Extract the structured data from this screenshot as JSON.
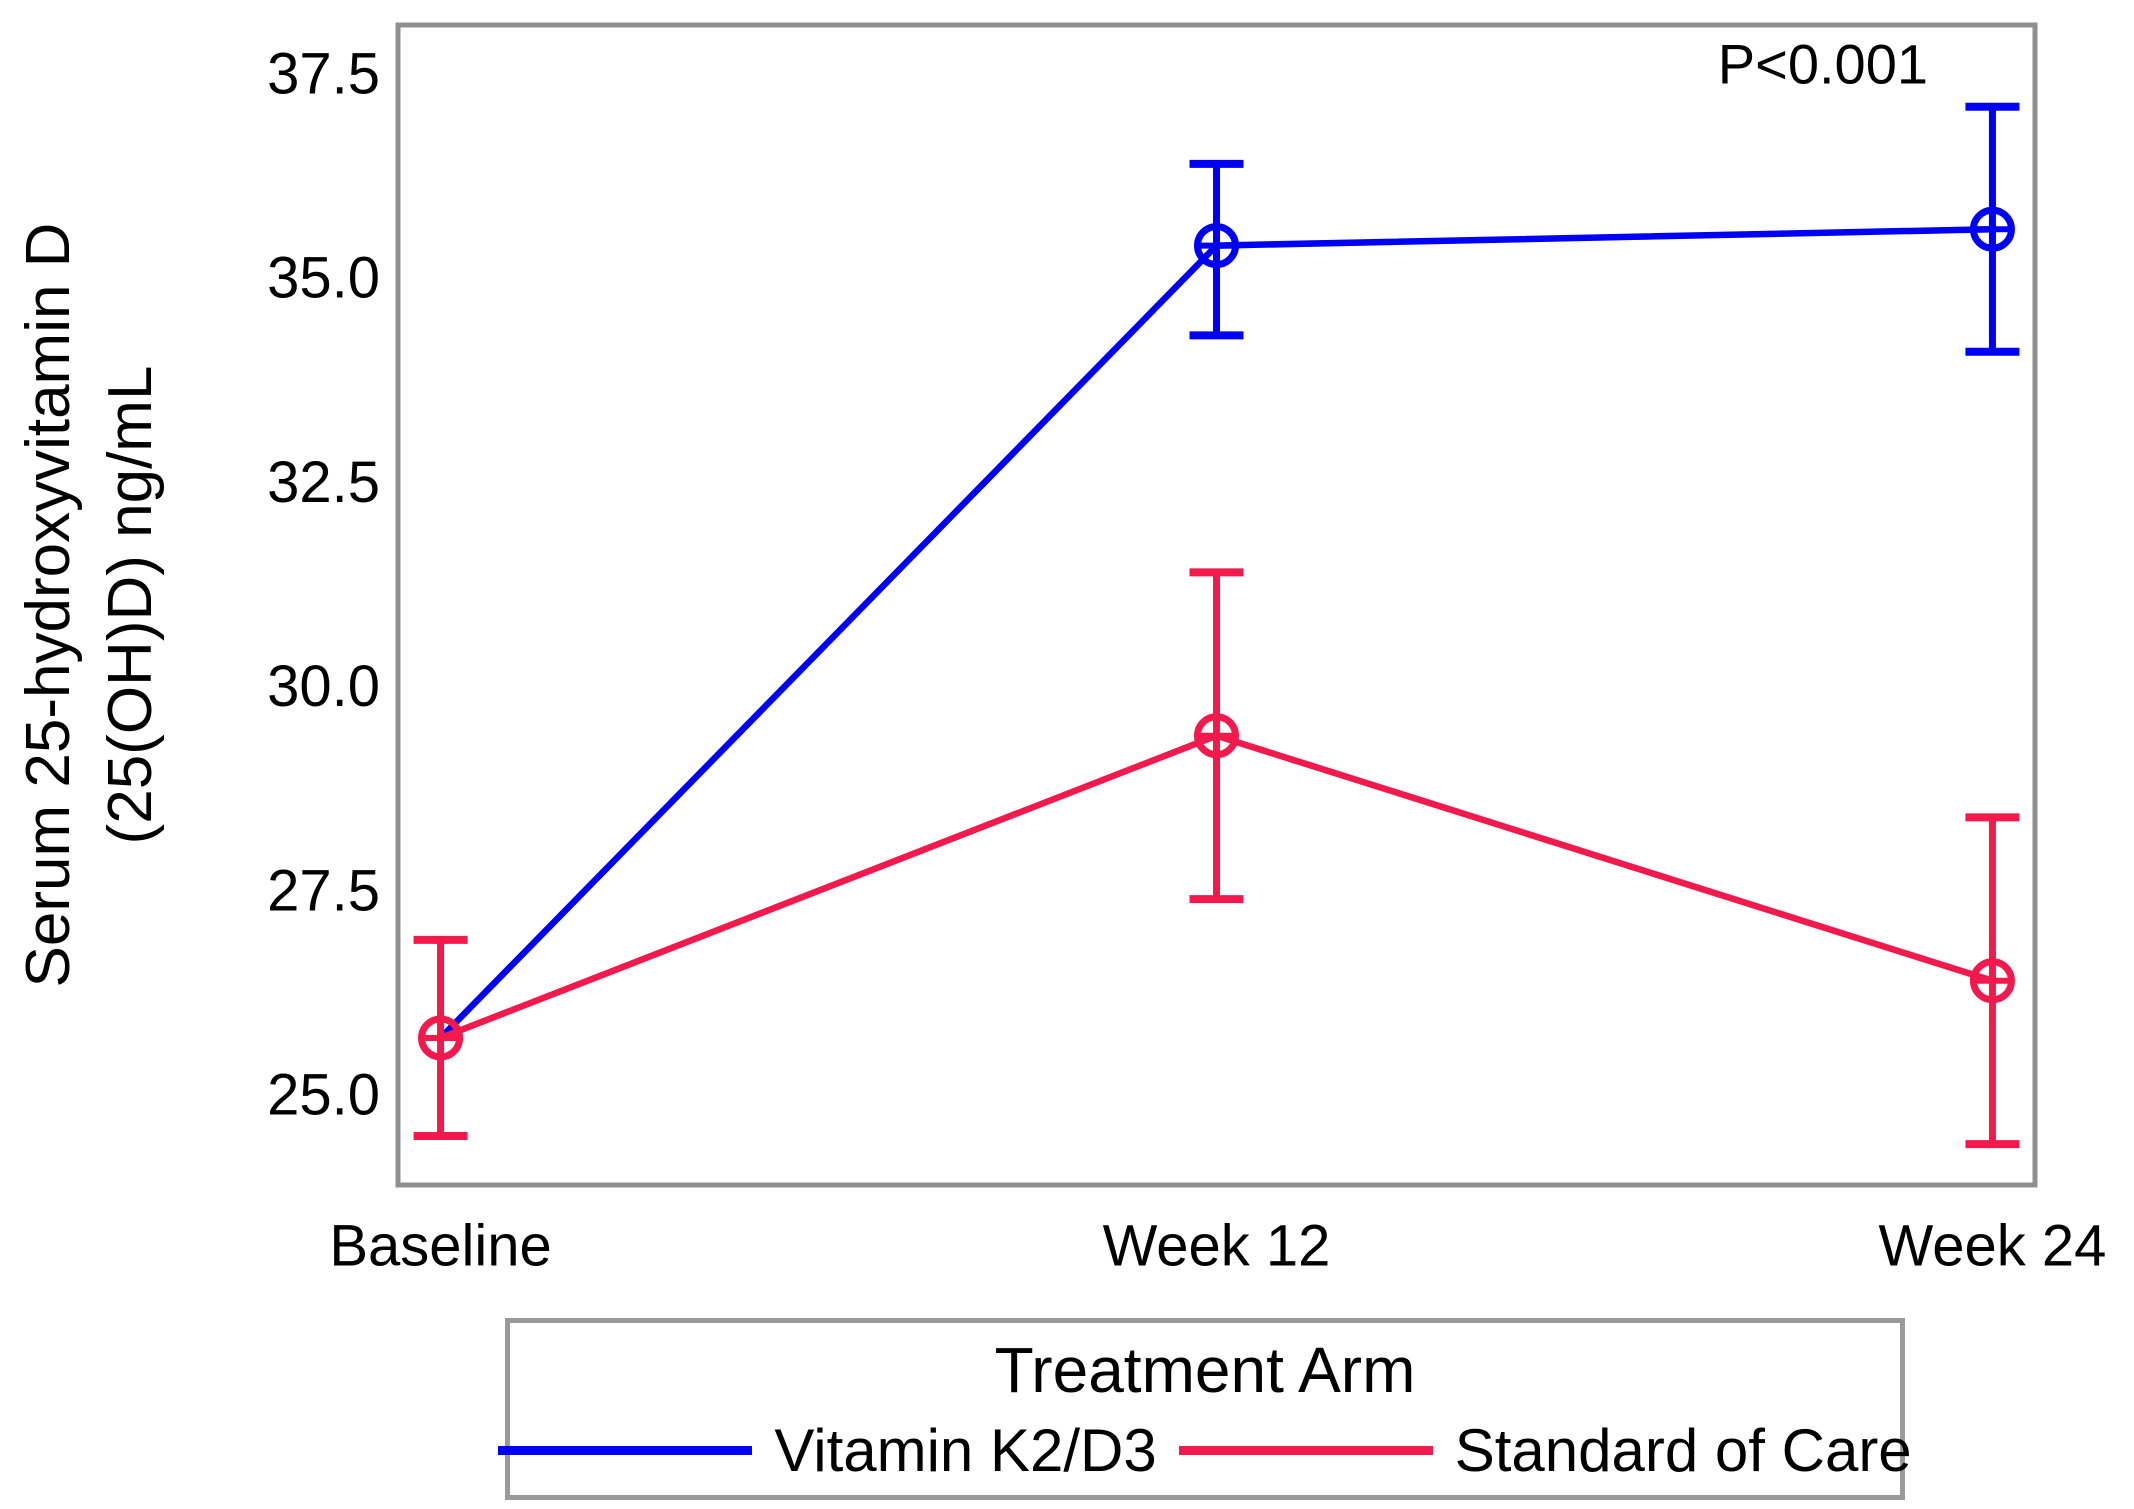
{
  "y_axis": {
    "title_line1": "Serum 25-hydroxyvitamin D",
    "title_line2": "(25(OH)D) ng/mL"
  },
  "chart_data": {
    "type": "line",
    "categories": [
      "Baseline",
      "Week 12",
      "Week 24"
    ],
    "series": [
      {
        "name": "Vitamin K2/D3",
        "color": "#0000f5",
        "values": [
          25.7,
          35.4,
          35.6
        ],
        "ci_low": [
          null,
          34.3,
          34.1
        ],
        "ci_high": [
          null,
          36.4,
          37.1
        ],
        "marker": "circle-plus",
        "marker_visible": [
          false,
          true,
          true
        ]
      },
      {
        "name": "Standard of Care",
        "color": "#f2194d",
        "values": [
          25.7,
          29.4,
          26.4
        ],
        "ci_low": [
          24.5,
          27.4,
          24.4
        ],
        "ci_high": [
          26.9,
          31.4,
          28.4
        ],
        "marker": "circle-plus",
        "marker_visible": [
          true,
          true,
          true
        ]
      }
    ],
    "annotation": "P<0.001",
    "ylabel": "Serum 25-hydroxyvitamin D (25(OH)D) ng/mL",
    "xlabel": "",
    "ylim": [
      23.9,
      38.1
    ],
    "yticks": [
      25.0,
      27.5,
      30.0,
      32.5,
      35.0,
      37.5
    ],
    "ytick_decimals": 1,
    "grid": false,
    "error_bars": true,
    "legend_title": "Treatment Arm",
    "legend_position": "bottom",
    "note": "Baseline points of both arms overlap; only the red marker and error bar are visible there."
  }
}
